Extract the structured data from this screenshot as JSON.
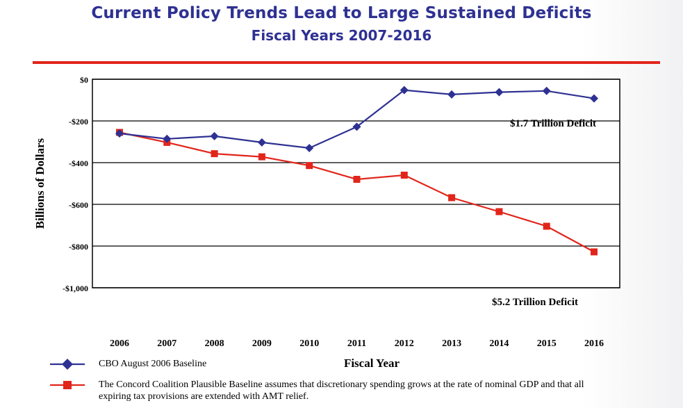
{
  "title": "Current Policy Trends Lead to Large Sustained Deficits",
  "subtitle": "Fiscal Years 2007-2016",
  "colors": {
    "title": "#2e3192",
    "rule": "#e1251b",
    "cbo": "#2e3192",
    "concord": "#e1251b"
  },
  "chart_data": {
    "type": "line",
    "xlabel": "Fiscal Year",
    "ylabel": "Billions of Dollars",
    "x": [
      "2006",
      "2007",
      "2008",
      "2009",
      "2010",
      "2011",
      "2012",
      "2013",
      "2014",
      "2015",
      "2016"
    ],
    "ylim": [
      -1000,
      0
    ],
    "yticks": [
      0,
      -200,
      -400,
      -600,
      -800,
      -1000
    ],
    "ytick_labels": [
      "$0",
      "-$200",
      "-$400",
      "-$600",
      "-$800",
      "-$1,000"
    ],
    "grid": "horizontal",
    "series": [
      {
        "name": "CBO August 2006 Baseline",
        "marker": "diamond",
        "color": "#2e3192",
        "values": [
          -260,
          -286,
          -273,
          -303,
          -330,
          -228,
          -52,
          -73,
          -62,
          -56,
          -92
        ]
      },
      {
        "name": "The Concord Coalition Plausible Baseline assumes that discretionary spending grows at the rate of nominal GDP and that all expiring tax provisions are extended with AMT relief.",
        "marker": "square",
        "color": "#e1251b",
        "values": [
          -255,
          -303,
          -357,
          -372,
          -414,
          -480,
          -460,
          -568,
          -635,
          -705,
          -828
        ]
      }
    ],
    "annotations": [
      {
        "text": "$1.7 Trillion Deficit",
        "x": "2016",
        "y": -210
      },
      {
        "text": "$5.2 Trillion Deficit",
        "x": "2016",
        "y": -1060
      }
    ]
  },
  "legend": {
    "cbo_label": "CBO August 2006 Baseline",
    "concord_label": "The Concord Coalition Plausible Baseline assumes that discretionary spending grows at the rate of nominal GDP and that all expiring tax provisions are extended with AMT relief."
  }
}
